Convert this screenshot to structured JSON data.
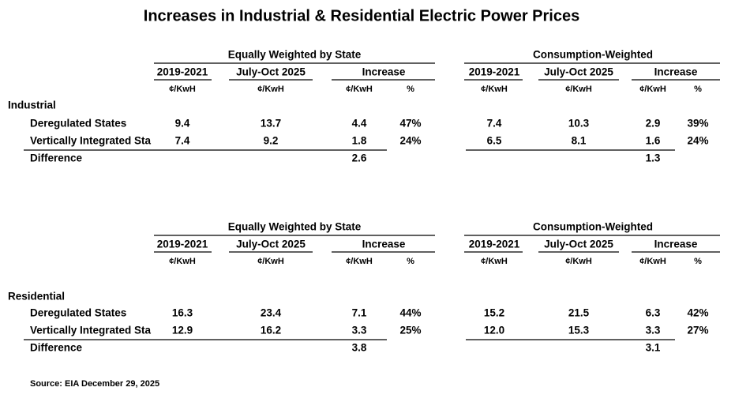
{
  "title": "Increases in Industrial & Residential Electric Power Prices",
  "panels": [
    {
      "groups": [
        "Equally Weighted by State",
        "Consumption-Weighted"
      ],
      "columns": [
        "2019-2021",
        "July-Oct 2025",
        "Increase"
      ],
      "units": [
        "¢/KwH",
        "¢/KwH",
        "¢/KwH",
        "%"
      ],
      "section": "Industrial",
      "rows": [
        {
          "label": "Deregulated States",
          "cells": [
            "9.4",
            "13.7",
            "4.4",
            "47%",
            "7.4",
            "10.3",
            "2.9",
            "39%"
          ]
        },
        {
          "label": "Vertically Integrated Sta",
          "cells": [
            "7.4",
            "9.2",
            "1.8",
            "24%",
            "6.5",
            "8.1",
            "1.6",
            "24%"
          ]
        }
      ],
      "difference": {
        "label": "Difference",
        "cells": [
          "2.6",
          "1.3"
        ]
      }
    },
    {
      "groups": [
        "Equally Weighted by State",
        "Consumption-Weighted"
      ],
      "columns": [
        "2019-2021",
        "July-Oct 2025",
        "Increase"
      ],
      "units": [
        "¢/KwH",
        "¢/KwH",
        "¢/KwH",
        "%"
      ],
      "section": "Residential",
      "rows": [
        {
          "label": "Deregulated States",
          "cells": [
            "16.3",
            "23.4",
            "7.1",
            "44%",
            "15.2",
            "21.5",
            "6.3",
            "42%"
          ]
        },
        {
          "label": "Vertically Integrated Sta",
          "cells": [
            "12.9",
            "16.2",
            "3.3",
            "25%",
            "12.0",
            "15.3",
            "3.3",
            "27%"
          ]
        }
      ],
      "difference": {
        "label": "Difference",
        "cells": [
          "3.8",
          "3.1"
        ]
      }
    }
  ],
  "source": "Source: EIA December 29, 2025"
}
